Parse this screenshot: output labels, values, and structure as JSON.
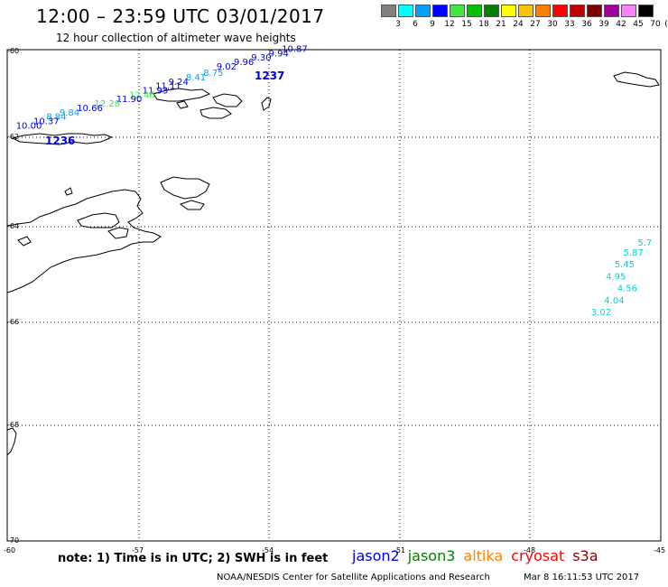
{
  "title": "12:00 – 23:59 UTC 03/01/2017",
  "subtitle": "12 hour collection of altimeter wave heights",
  "scale": {
    "labels": [
      "3",
      "6",
      "9",
      "12",
      "15",
      "18",
      "21",
      "24",
      "27",
      "30",
      "33",
      "36",
      "39",
      "42",
      "45",
      "70"
    ],
    "unit": "(ft)",
    "colors": [
      "#808080",
      "#00ffff",
      "#00a0ff",
      "#0000ff",
      "#40e840",
      "#00c000",
      "#008000",
      "#ffff00",
      "#ffc000",
      "#ff8000",
      "#ff0000",
      "#c00000",
      "#800000",
      "#a000a0",
      "#ff80ff",
      "#000000"
    ]
  },
  "axes": {
    "lat_labels": [
      "-60",
      "-62",
      "-64",
      "-66",
      "-68",
      "-70"
    ],
    "lon_labels": [
      "-60",
      "-57",
      "-54",
      "-51",
      "-48",
      "-45"
    ]
  },
  "chart_data": {
    "type": "scatter",
    "title": "12:00 – 23:59 UTC 03/01/2017",
    "xlabel": "",
    "ylabel": "",
    "xlim": [
      -60,
      -45
    ],
    "ylim": [
      -70,
      -60
    ],
    "grid": true,
    "tracks": [
      {
        "time_label": "1237",
        "color": "#0000dd",
        "points": [
          {
            "lon": -53.7,
            "lat": -60.05,
            "swh": "10.87",
            "color": "#0000dd"
          },
          {
            "lon": -54.0,
            "lat": -60.15,
            "swh": "9.94",
            "color": "#0000dd"
          },
          {
            "lon": -54.4,
            "lat": -60.25,
            "swh": "9.30",
            "color": "#0000dd"
          },
          {
            "lon": -54.8,
            "lat": -60.35,
            "swh": "9.96",
            "color": "#0000dd"
          },
          {
            "lon": -55.2,
            "lat": -60.45,
            "swh": "9.02",
            "color": "#0000dd"
          },
          {
            "lon": -55.5,
            "lat": -60.6,
            "swh": "8.75",
            "color": "#00a0ff"
          },
          {
            "lon": -55.9,
            "lat": -60.7,
            "swh": "8.41",
            "color": "#00a0ff"
          },
          {
            "lon": -56.3,
            "lat": -60.8,
            "swh": "9.24",
            "color": "#0000dd"
          },
          {
            "lon": -56.6,
            "lat": -60.9,
            "swh": "11.11",
            "color": "#0000dd"
          },
          {
            "lon": -56.9,
            "lat": -61.0,
            "swh": "11.93",
            "color": "#0000dd"
          },
          {
            "lon": -57.2,
            "lat": -61.1,
            "swh": "12.46",
            "color": "#40e840"
          },
          {
            "lon": -57.5,
            "lat": -61.2,
            "swh": "11.90",
            "color": "#0000dd"
          },
          {
            "lon": -58.0,
            "lat": -61.3,
            "swh": "12.28",
            "color": "#40e840"
          },
          {
            "lon": -58.4,
            "lat": -61.4,
            "swh": "10.66",
            "color": "#0000dd"
          },
          {
            "lon": -58.8,
            "lat": -61.5,
            "swh": "9.84",
            "color": "#00a0ff"
          },
          {
            "lon": -59.1,
            "lat": -61.6,
            "swh": "8.84",
            "color": "#00a0ff"
          },
          {
            "lon": -59.4,
            "lat": -61.7,
            "swh": "10.37",
            "color": "#0000dd"
          },
          {
            "lon": -59.8,
            "lat": -61.8,
            "swh": "10.00",
            "color": "#0000dd"
          }
        ]
      },
      {
        "time_label": "1236",
        "color": "#0000dd",
        "points": []
      },
      {
        "time_label": "",
        "color": "#00d0e0",
        "points": [
          {
            "lon": -45.1,
            "lat": -64.2,
            "swh": "",
            "color": "#00d0e0"
          },
          {
            "lon": -45.2,
            "lat": -64.4,
            "swh": "5.7",
            "color": "#00d0e0"
          },
          {
            "lon": -45.4,
            "lat": -64.6,
            "swh": "5.87",
            "color": "#00d0e0"
          },
          {
            "lon": -45.6,
            "lat": -64.85,
            "swh": "5.45",
            "color": "#00d0e0"
          },
          {
            "lon": -45.8,
            "lat": -65.1,
            "swh": "4.95",
            "color": "#00d0e0"
          },
          {
            "lon": -46.0,
            "lat": -65.35,
            "swh": "4.56",
            "color": "#00d0e0"
          },
          {
            "lon": -46.3,
            "lat": -65.6,
            "swh": "4.04",
            "color": "#00d0e0"
          },
          {
            "lon": -46.6,
            "lat": -65.85,
            "swh": "3.02",
            "color": "#00d0e0"
          }
        ]
      }
    ]
  },
  "note": "note: 1) Time is in UTC; 2) SWH is in feet",
  "missions": [
    {
      "name": "jason2",
      "color": "#0000dd"
    },
    {
      "name": "jason3",
      "color": "#008000"
    },
    {
      "name": "altika",
      "color": "#ff8000"
    },
    {
      "name": "cryosat",
      "color": "#ff0000"
    },
    {
      "name": "s3a",
      "color": "#800000"
    }
  ],
  "credit": "NOAA/NESDIS Center for Satellite Applications and Research",
  "generated": "Mar  8 16:11:53 UTC 2017"
}
